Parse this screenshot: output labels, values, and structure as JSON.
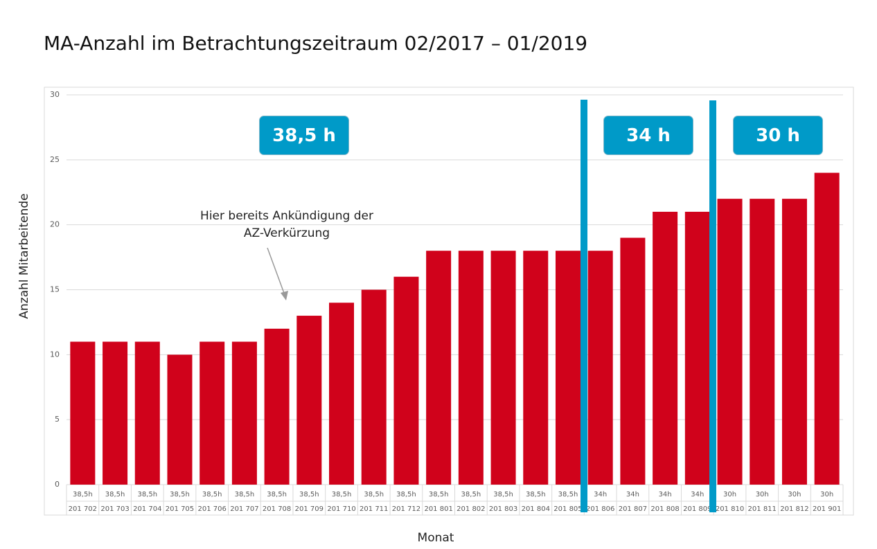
{
  "page": {
    "title": "MA-Anzahl im Betrachtungszeitraum 02/2017 – 01/2019"
  },
  "annotations": {
    "note_line1": "Hier bereits Ankündigung der",
    "note_line2": "AZ-Verkürzung",
    "period_boxes": [
      {
        "label": "38,5 h"
      },
      {
        "label": "34 h"
      },
      {
        "label": "30 h"
      }
    ]
  },
  "colors": {
    "bar": "#d0021b",
    "marker": "#009ac8",
    "grid": "#d9d9d9"
  },
  "chart_data": {
    "type": "bar",
    "title": "MA-Anzahl im Betrachtungszeitraum 02/2017 – 01/2019",
    "xlabel": "Monat",
    "ylabel": "Anzahl Mitarbeitende",
    "ylim": [
      0,
      30
    ],
    "yticks": [
      0,
      5,
      10,
      15,
      20,
      25,
      30
    ],
    "grid": true,
    "categories": [
      "201 702",
      "201 703",
      "201 704",
      "201 705",
      "201 706",
      "201 707",
      "201 708",
      "201 709",
      "201 710",
      "201 711",
      "201 712",
      "201 801",
      "201 802",
      "201 803",
      "201 804",
      "201 805",
      "201 806",
      "201 807",
      "201 808",
      "201 809",
      "201 810",
      "201 811",
      "201 812",
      "201 901"
    ],
    "hours": [
      "38,5h",
      "38,5h",
      "38,5h",
      "38,5h",
      "38,5h",
      "38,5h",
      "38,5h",
      "38,5h",
      "38,5h",
      "38,5h",
      "38,5h",
      "38,5h",
      "38,5h",
      "38,5h",
      "38,5h",
      "38,5h",
      "34h",
      "34h",
      "34h",
      "34h",
      "30h",
      "30h",
      "30h",
      "30h"
    ],
    "values": [
      11,
      11,
      11,
      10,
      11,
      11,
      12,
      13,
      14,
      15,
      16,
      18,
      18,
      18,
      18,
      18,
      18,
      19,
      21,
      21,
      22,
      22,
      22,
      24
    ]
  }
}
